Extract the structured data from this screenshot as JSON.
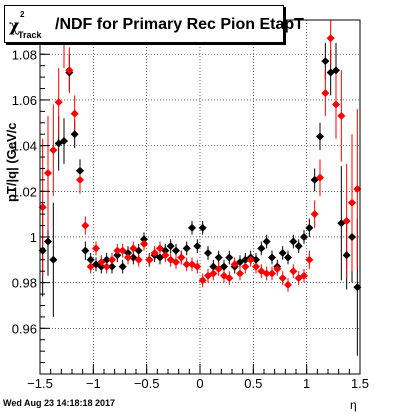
{
  "title": {
    "chi": "χ",
    "sup": "2",
    "sub": "Track",
    "rest": "/NDF for Primary Rec Pion EtapT"
  },
  "footer_text": "Wed Aug 23 14:18:18 2017",
  "chart_data": {
    "type": "scatter",
    "xlabel": "η",
    "ylabel": "p_T^{rec}/|q| (GeV/c)",
    "ylabel_display": "pT/|q| (GeV/c",
    "xlim": [
      -1.5,
      1.5
    ],
    "ylim": [
      0.94,
      1.095
    ],
    "x_ticks": [
      -1.5,
      -1,
      -0.5,
      0,
      0.5,
      1,
      1.5
    ],
    "x_tick_labels": [
      "−1.5",
      "−1",
      "−0.5",
      "0",
      "0.5",
      "1",
      "1.5"
    ],
    "y_ticks": [
      0.96,
      0.98,
      1.0,
      1.02,
      1.04,
      1.06,
      1.08
    ],
    "y_tick_labels": [
      "0.96",
      "0.98",
      "1",
      "1.02",
      "1.04",
      "1.06",
      "1.08"
    ],
    "grid": true,
    "colors": {
      "black_series": "#000000",
      "red_series": "#ff0000"
    },
    "series": [
      {
        "color": "black",
        "x": [
          -1.475,
          -1.425,
          -1.375,
          -1.325,
          -1.275,
          -1.225,
          -1.175,
          -1.125,
          -1.075,
          -1.025,
          -0.975,
          -0.925,
          -0.875,
          -0.825,
          -0.775,
          -0.725,
          -0.675,
          -0.625,
          -0.575,
          -0.525,
          -0.475,
          -0.425,
          -0.375,
          -0.325,
          -0.275,
          -0.225,
          -0.175,
          -0.125,
          -0.075,
          -0.025,
          0.025,
          0.075,
          0.125,
          0.175,
          0.225,
          0.275,
          0.325,
          0.375,
          0.425,
          0.475,
          0.525,
          0.575,
          0.625,
          0.675,
          0.725,
          0.775,
          0.825,
          0.875,
          0.925,
          0.975,
          1.025,
          1.075,
          1.125,
          1.175,
          1.225,
          1.275,
          1.325,
          1.375,
          1.425,
          1.475
        ],
        "y": [
          0.994,
          0.998,
          0.99,
          1.041,
          1.042,
          1.072,
          1.045,
          1.029,
          0.994,
          0.99,
          0.988,
          0.987,
          0.99,
          0.987,
          0.992,
          0.987,
          0.993,
          0.991,
          0.994,
          0.999,
          0.99,
          0.992,
          0.991,
          0.994,
          0.996,
          0.994,
          0.991,
          0.995,
          1.004,
          0.996,
          1.004,
          0.993,
          0.987,
          0.991,
          0.987,
          0.991,
          0.987,
          0.989,
          0.99,
          0.991,
          0.99,
          0.995,
          0.998,
          0.991,
          0.987,
          0.993,
          0.991,
          0.998,
          0.996,
          1.0,
          1.004,
          1.025,
          1.044,
          1.077,
          1.072,
          1.073,
          1.006,
          0.992,
          1.0,
          0.978
        ],
        "err": [
          0.02,
          0.015,
          0.025,
          0.012,
          0.01,
          0.008,
          0.006,
          0.005,
          0.004,
          0.003,
          0.003,
          0.003,
          0.003,
          0.003,
          0.003,
          0.003,
          0.003,
          0.003,
          0.003,
          0.003,
          0.003,
          0.003,
          0.003,
          0.003,
          0.003,
          0.003,
          0.003,
          0.003,
          0.003,
          0.003,
          0.003,
          0.003,
          0.003,
          0.003,
          0.003,
          0.003,
          0.003,
          0.003,
          0.003,
          0.003,
          0.003,
          0.003,
          0.003,
          0.003,
          0.003,
          0.003,
          0.003,
          0.003,
          0.003,
          0.003,
          0.004,
          0.005,
          0.006,
          0.008,
          0.01,
          0.012,
          0.025,
          0.015,
          0.02,
          0.03
        ]
      },
      {
        "color": "red",
        "x": [
          -1.475,
          -1.425,
          -1.375,
          -1.325,
          -1.275,
          -1.225,
          -1.175,
          -1.125,
          -1.075,
          -1.025,
          -0.975,
          -0.925,
          -0.875,
          -0.825,
          -0.775,
          -0.725,
          -0.675,
          -0.625,
          -0.575,
          -0.525,
          -0.475,
          -0.425,
          -0.375,
          -0.325,
          -0.275,
          -0.225,
          -0.175,
          -0.125,
          -0.075,
          -0.025,
          0.025,
          0.075,
          0.125,
          0.175,
          0.225,
          0.275,
          0.325,
          0.375,
          0.425,
          0.475,
          0.525,
          0.575,
          0.625,
          0.675,
          0.725,
          0.775,
          0.825,
          0.875,
          0.925,
          0.975,
          1.025,
          1.075,
          1.125,
          1.175,
          1.225,
          1.275,
          1.325,
          1.375,
          1.425,
          1.475
        ],
        "y": [
          1.013,
          1.028,
          1.038,
          1.059,
          1.086,
          1.073,
          1.054,
          1.025,
          1.005,
          0.987,
          0.995,
          0.989,
          0.987,
          0.99,
          0.994,
          0.994,
          0.991,
          0.995,
          0.99,
          0.997,
          0.99,
          0.993,
          0.995,
          0.992,
          0.99,
          0.989,
          0.991,
          0.988,
          0.988,
          0.987,
          0.981,
          0.983,
          0.984,
          0.986,
          0.983,
          0.982,
          0.988,
          0.984,
          0.987,
          0.99,
          0.987,
          0.985,
          0.984,
          0.984,
          0.986,
          0.982,
          0.979,
          0.985,
          0.982,
          0.983,
          0.99,
          1.01,
          1.026,
          1.063,
          1.087,
          1.058,
          1.053,
          1.007,
          1.015,
          1.021
        ],
        "err": [
          0.03,
          0.025,
          0.02,
          0.015,
          0.012,
          0.01,
          0.008,
          0.006,
          0.004,
          0.003,
          0.003,
          0.003,
          0.003,
          0.003,
          0.003,
          0.003,
          0.003,
          0.003,
          0.003,
          0.003,
          0.003,
          0.003,
          0.003,
          0.003,
          0.003,
          0.003,
          0.003,
          0.003,
          0.003,
          0.003,
          0.003,
          0.003,
          0.003,
          0.003,
          0.003,
          0.003,
          0.003,
          0.003,
          0.003,
          0.003,
          0.003,
          0.003,
          0.003,
          0.003,
          0.003,
          0.003,
          0.003,
          0.003,
          0.003,
          0.003,
          0.004,
          0.006,
          0.008,
          0.01,
          0.012,
          0.015,
          0.02,
          0.025,
          0.03,
          0.035
        ]
      }
    ]
  }
}
